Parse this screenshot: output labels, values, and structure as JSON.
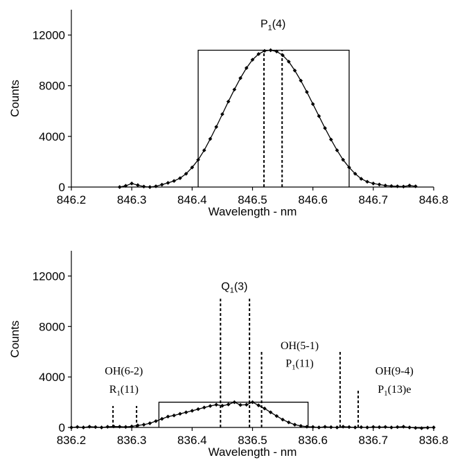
{
  "colors": {
    "ink": "#000000",
    "background": "#ffffff"
  },
  "chart_data": [
    {
      "type": "line",
      "xlabel": "Wavelength - nm",
      "ylabel": "Counts",
      "xlim": [
        846.2,
        846.8
      ],
      "ylim": [
        0,
        14000
      ],
      "xticks": [
        846.2,
        846.3,
        846.4,
        846.5,
        846.6,
        846.7,
        846.8
      ],
      "xtick_labels": [
        "846.2",
        "846.3",
        "846.4",
        "846.5",
        "846.6",
        "846.7",
        "846.8"
      ],
      "yticks": [
        0,
        4000,
        8000,
        12000
      ],
      "ytick_labels": [
        "0",
        "4000",
        "8000",
        "12000"
      ],
      "grid": false,
      "series": [
        {
          "x": [
            846.28,
            846.29,
            846.3,
            846.31,
            846.32,
            846.33,
            846.34,
            846.35,
            846.36,
            846.37,
            846.38,
            846.39,
            846.4,
            846.41,
            846.42,
            846.43,
            846.44,
            846.45,
            846.46,
            846.47,
            846.48,
            846.49,
            846.5,
            846.51,
            846.52,
            846.53,
            846.54,
            846.55,
            846.56,
            846.57,
            846.58,
            846.59,
            846.6,
            846.61,
            846.62,
            846.63,
            846.64,
            846.65,
            846.66,
            846.67,
            846.68,
            846.69,
            846.7,
            846.71,
            846.72,
            846.73,
            846.74,
            846.75,
            846.76,
            846.77
          ],
          "y": [
            0,
            100,
            280,
            150,
            40,
            0,
            60,
            190,
            330,
            480,
            700,
            1050,
            1550,
            2150,
            2900,
            3800,
            4750,
            5750,
            6750,
            7700,
            8600,
            9400,
            10050,
            10500,
            10750,
            10800,
            10700,
            10400,
            9900,
            9200,
            8400,
            7500,
            6550,
            5600,
            4650,
            3750,
            2900,
            2150,
            1550,
            1050,
            650,
            420,
            280,
            200,
            120,
            80,
            60,
            40,
            120,
            60
          ]
        }
      ],
      "box": {
        "x": [
          846.41,
          846.66
        ],
        "y": 10800
      },
      "dotted_lines": [
        {
          "x": 846.519,
          "y": 10800
        },
        {
          "x": 846.549,
          "y": 10800
        }
      ],
      "annotations": [
        {
          "main": "P",
          "sub": "1",
          "tail": "(4)",
          "x": 846.534,
          "y": 12600
        }
      ]
    },
    {
      "type": "line",
      "xlabel": "Wavelength - nm",
      "ylabel": "Counts",
      "xlim": [
        836.2,
        836.8
      ],
      "ylim": [
        0,
        14000
      ],
      "xticks": [
        836.2,
        836.3,
        836.4,
        836.5,
        836.6,
        836.7,
        836.8
      ],
      "xtick_labels": [
        "836.2",
        "836.3",
        "836.4",
        "836.5",
        "836.6",
        "836.7",
        "836.8"
      ],
      "yticks": [
        0,
        4000,
        8000,
        12000
      ],
      "ytick_labels": [
        "0",
        "4000",
        "8000",
        "12000"
      ],
      "grid": false,
      "series": [
        {
          "x": [
            836.2,
            836.21,
            836.22,
            836.23,
            836.24,
            836.25,
            836.26,
            836.27,
            836.28,
            836.29,
            836.3,
            836.31,
            836.32,
            836.33,
            836.34,
            836.35,
            836.36,
            836.37,
            836.38,
            836.39,
            836.4,
            836.41,
            836.42,
            836.43,
            836.44,
            836.45,
            836.46,
            836.47,
            836.48,
            836.49,
            836.5,
            836.51,
            836.52,
            836.53,
            836.54,
            836.55,
            836.56,
            836.57,
            836.58,
            836.59,
            836.6,
            836.61,
            836.62,
            836.63,
            836.64,
            836.65,
            836.66,
            836.67,
            836.68,
            836.69,
            836.7,
            836.71,
            836.72,
            836.73,
            836.74,
            836.75,
            836.76,
            836.77,
            836.78,
            836.79,
            836.8
          ],
          "y": [
            0,
            40,
            0,
            60,
            30,
            0,
            50,
            80,
            60,
            40,
            80,
            160,
            220,
            330,
            500,
            680,
            860,
            950,
            1080,
            1200,
            1320,
            1450,
            1580,
            1700,
            1800,
            1720,
            1820,
            2000,
            1780,
            1800,
            2000,
            1750,
            1500,
            1200,
            900,
            620,
            400,
            220,
            120,
            60,
            40,
            0,
            50,
            20,
            0,
            60,
            30,
            0,
            20,
            0,
            40,
            20,
            40,
            0,
            30,
            60,
            0,
            -40,
            -60,
            -20,
            0
          ]
        }
      ],
      "box": {
        "x": [
          836.345,
          836.592
        ],
        "y": 2000
      },
      "dotted_lines": [
        {
          "x": 836.269,
          "y": 1700
        },
        {
          "x": 836.308,
          "y": 1700
        },
        {
          "x": 836.447,
          "y": 10200
        },
        {
          "x": 836.495,
          "y": 10200
        },
        {
          "x": 836.515,
          "y": 6000
        },
        {
          "x": 836.645,
          "y": 6000
        },
        {
          "x": 836.675,
          "y": 3000
        }
      ],
      "annotations": [
        {
          "main": "Q",
          "sub": "1",
          "tail": "(3)",
          "x": 836.47,
          "y": 10900
        },
        {
          "main": "OH(6-2)",
          "sub": "",
          "tail": "",
          "x": 836.287,
          "y": 4200,
          "serif": true
        },
        {
          "main": "R",
          "sub": "1",
          "tail": "(11)",
          "x": 836.287,
          "y": 2750,
          "serif": true
        },
        {
          "main": "OH(5-1)",
          "sub": "",
          "tail": "",
          "x": 836.578,
          "y": 6200,
          "serif": true
        },
        {
          "main": "P",
          "sub": "1",
          "tail": "(11)",
          "x": 836.578,
          "y": 4800,
          "serif": true
        },
        {
          "main": "OH(9-4)",
          "sub": "",
          "tail": "",
          "x": 836.735,
          "y": 4200,
          "serif": true
        },
        {
          "main": "P",
          "sub": "1",
          "tail": "(13)e",
          "x": 836.735,
          "y": 2750,
          "serif": true
        }
      ]
    }
  ]
}
